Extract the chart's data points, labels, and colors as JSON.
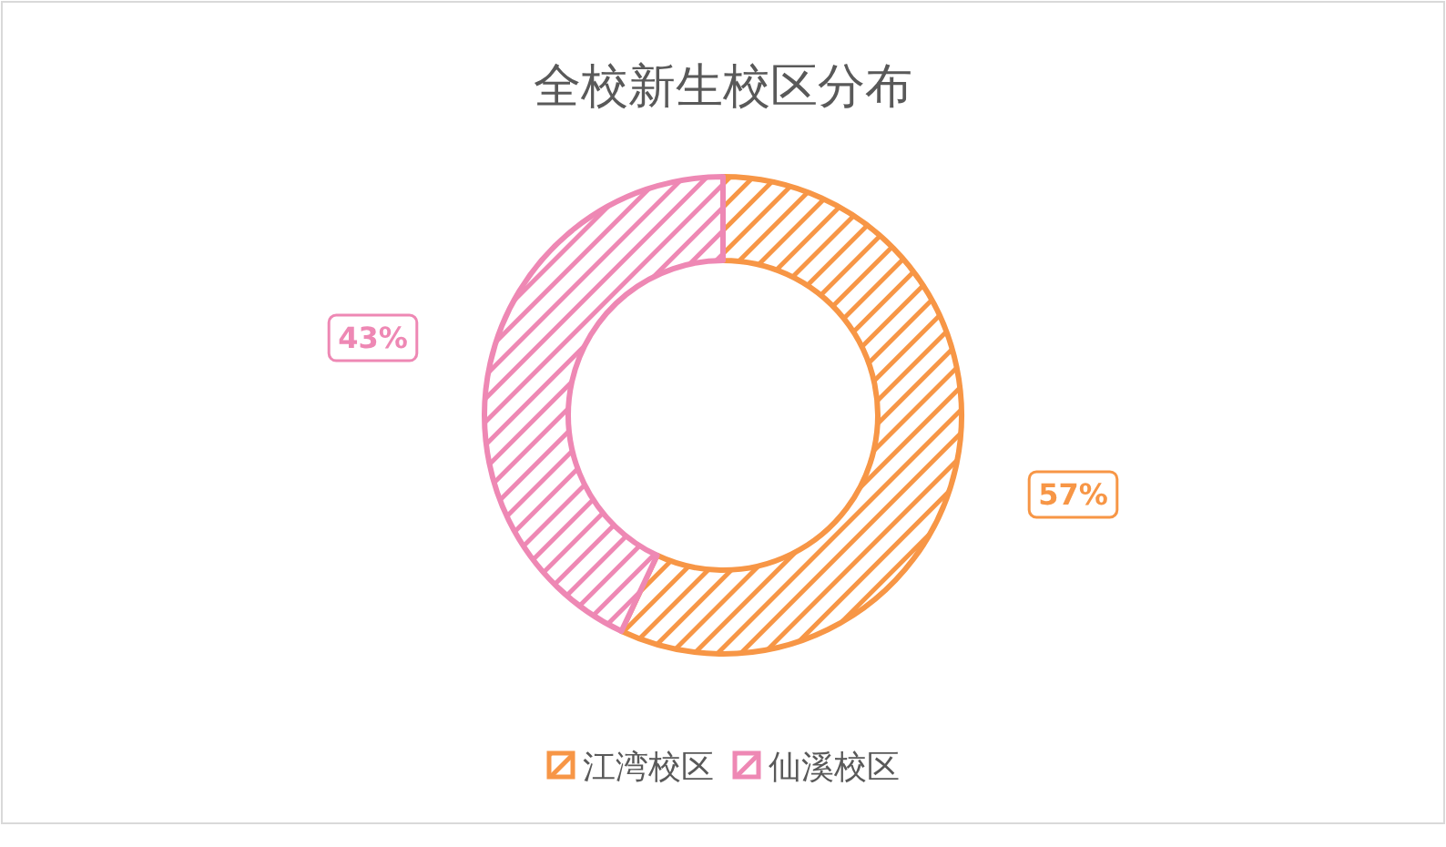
{
  "chart_data": {
    "type": "donut",
    "title": "全校新生校区分布",
    "categories": [
      "江湾校区",
      "仙溪校区"
    ],
    "values": [
      57,
      43
    ],
    "colors": [
      "#f79646",
      "#ee88b4"
    ],
    "value_labels": [
      "57%",
      "43%"
    ],
    "legend": "bottom"
  }
}
